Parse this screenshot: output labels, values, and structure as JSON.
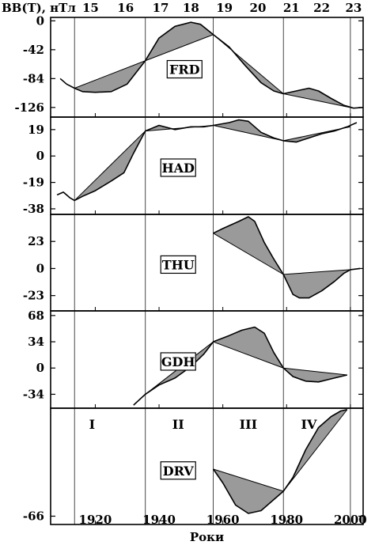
{
  "chart_data": {
    "type": "line",
    "y_axis_title": "BB(T), нТл",
    "x_axis_title": "Роки",
    "xlim": [
      1906,
      2004
    ],
    "x_ticks": [
      1920,
      1940,
      1960,
      1980,
      2000
    ],
    "solar_cycles": {
      "labels": [
        "15",
        "16",
        "17",
        "18",
        "19",
        "20",
        "21",
        "22",
        "23"
      ],
      "centers": [
        1918.5,
        1929.5,
        1940.5,
        1950,
        1960.5,
        1971,
        1981.5,
        1991,
        2001
      ],
      "boundaries": [
        1913.5,
        1935.7,
        1957,
        1979,
        2000
      ]
    },
    "intervals": [
      {
        "label": "I",
        "x": 1919
      },
      {
        "label": "II",
        "x": 1946
      },
      {
        "label": "III",
        "x": 1968
      },
      {
        "label": "IV",
        "x": 1987
      }
    ],
    "panels": [
      {
        "station": "FRD",
        "ylim": [
          -140,
          5
        ],
        "y_ticks": [
          0,
          -42,
          -84,
          -126
        ],
        "series": {
          "x": [
            1909,
            1911,
            1913.5,
            1916,
            1920,
            1925,
            1930,
            1935.7,
            1940,
            1945,
            1950,
            1953,
            1957,
            1962,
            1967,
            1972,
            1976,
            1979,
            1983,
            1987,
            1990,
            1994,
            1998,
            2001,
            2004
          ],
          "y": [
            -84,
            -92,
            -98,
            -103,
            -104,
            -103,
            -92,
            -58,
            -25,
            -8,
            -2,
            -5,
            -20,
            -38,
            -65,
            -90,
            -102,
            -106,
            -102,
            -98,
            -102,
            -113,
            -123,
            -127,
            -126
          ]
        },
        "chords": [
          {
            "x": [
              1913.5,
              1935.7
            ],
            "y": [
              -98,
              -58
            ]
          },
          {
            "x": [
              1935.7,
              1957
            ],
            "y": [
              -58,
              -20
            ]
          },
          {
            "x": [
              1957,
              1979
            ],
            "y": [
              -20,
              -106
            ]
          },
          {
            "x": [
              1979,
              2001
            ],
            "y": [
              -106,
              -127
            ]
          }
        ]
      },
      {
        "station": "HAD",
        "ylim": [
          -42,
          28
        ],
        "y_ticks": [
          19,
          0,
          -19,
          -38
        ],
        "series": {
          "x": [
            1908,
            1910,
            1912,
            1913.5,
            1916,
            1920,
            1925,
            1929,
            1932,
            1935.7,
            1940,
            1945,
            1950,
            1954,
            1957,
            1962,
            1965,
            1968,
            1972,
            1976,
            1979,
            1983,
            1987,
            1991,
            1995,
            1999,
            2002
          ],
          "y": [
            -28,
            -26,
            -30,
            -32,
            -29,
            -25,
            -18,
            -12,
            2,
            18,
            22,
            19,
            21,
            21,
            22,
            24,
            26,
            25,
            17,
            13,
            11,
            10,
            13,
            16,
            18,
            21,
            24
          ]
        },
        "chords": [
          {
            "x": [
              1913.5,
              1935.7
            ],
            "y": [
              -32,
              18
            ]
          },
          {
            "x": [
              1935.7,
              1957
            ],
            "y": [
              18,
              22
            ]
          },
          {
            "x": [
              1957,
              1979
            ],
            "y": [
              22,
              11
            ]
          },
          {
            "x": [
              1979,
              2000
            ],
            "y": [
              11,
              21
            ]
          }
        ]
      },
      {
        "station": "THU",
        "ylim": [
          -36,
          46
        ],
        "y_ticks": [
          23,
          0,
          -23
        ],
        "series": {
          "x": [
            1957,
            1960,
            1965,
            1968,
            1970,
            1973,
            1976,
            1979,
            1982,
            1984,
            1987,
            1991,
            1995,
            1998,
            2000,
            2003
          ],
          "y": [
            30,
            34,
            40,
            44,
            40,
            22,
            8,
            -5,
            -22,
            -25,
            -25,
            -19,
            -11,
            -4,
            -1,
            0
          ]
        },
        "chords": [
          {
            "x": [
              1957,
              1979
            ],
            "y": [
              30,
              -5
            ]
          },
          {
            "x": [
              1979,
              2000
            ],
            "y": [
              -5,
              -1
            ]
          }
        ]
      },
      {
        "station": "GDH",
        "ylim": [
          -52,
          74
        ],
        "y_ticks": [
          68,
          34,
          0,
          -34
        ],
        "series": {
          "x": [
            1932,
            1935.7,
            1940,
            1945,
            1950,
            1954,
            1957,
            1962,
            1966,
            1970,
            1973,
            1976,
            1979,
            1982,
            1986,
            1990,
            1995,
            1999
          ],
          "y": [
            -48,
            -34,
            -22,
            -13,
            2,
            18,
            34,
            42,
            49,
            53,
            45,
            20,
            0,
            -11,
            -17,
            -18,
            -13,
            -9
          ]
        },
        "chords": [
          {
            "x": [
              1935.7,
              1957
            ],
            "y": [
              -34,
              34
            ]
          },
          {
            "x": [
              1957,
              1979
            ],
            "y": [
              34,
              0
            ]
          },
          {
            "x": [
              1979,
              1999
            ],
            "y": [
              0,
              -9
            ]
          }
        ]
      },
      {
        "station": "DRV",
        "ylim": [
          -72,
          12
        ],
        "y_ticks": [
          -66
        ],
        "series": {
          "x": [
            1957,
            1960,
            1964,
            1968,
            1972,
            1976,
            1979,
            1982,
            1986,
            1990,
            1994,
            1997,
            1999
          ],
          "y": [
            -32,
            -42,
            -58,
            -64,
            -62,
            -54,
            -48,
            -38,
            -18,
            -2,
            6,
            10,
            11
          ]
        },
        "chords": [
          {
            "x": [
              1957,
              1979
            ],
            "y": [
              -32,
              -48
            ]
          },
          {
            "x": [
              1979,
              1999
            ],
            "y": [
              -48,
              11
            ]
          }
        ]
      }
    ]
  }
}
